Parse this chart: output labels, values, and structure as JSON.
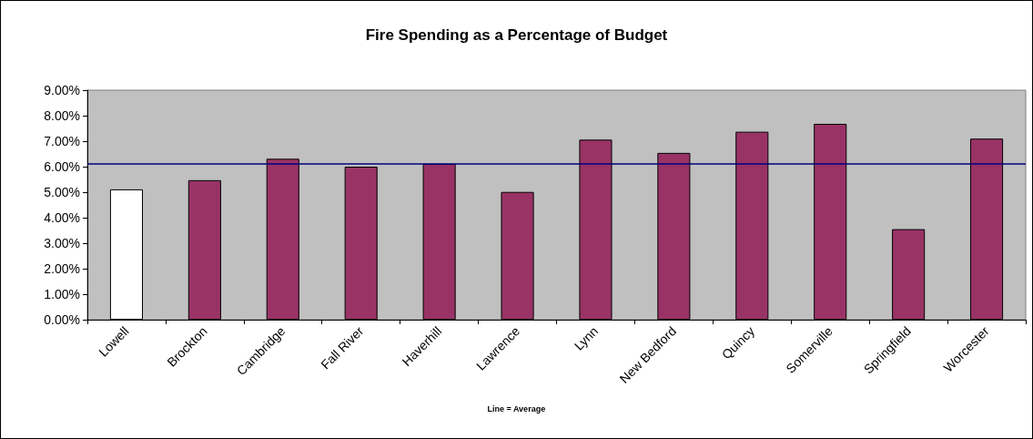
{
  "chart_data": {
    "type": "bar",
    "title": "Fire Spending as a Percentage of Budget",
    "categories": [
      "Lowell",
      "Brockton",
      "Cambridge",
      "Fall River",
      "Haverhill",
      "Lawrence",
      "Lynn",
      "New Bedford",
      "Quincy",
      "Somerville",
      "Springfield",
      "Worcester"
    ],
    "values": [
      5.11,
      5.47,
      6.31,
      6.0,
      6.11,
      5.01,
      7.06,
      6.54,
      7.37,
      7.68,
      3.55,
      7.1
    ],
    "colors": [
      "#ffffff",
      "#993366",
      "#993366",
      "#993366",
      "#993366",
      "#993366",
      "#993366",
      "#993366",
      "#993366",
      "#993366",
      "#993366",
      "#993366"
    ],
    "ylim": [
      0,
      9
    ],
    "yticks": [
      {
        "value": 0,
        "label": "0.00%"
      },
      {
        "value": 1,
        "label": "1.00%"
      },
      {
        "value": 2,
        "label": "2.00%"
      },
      {
        "value": 3,
        "label": "3.00%"
      },
      {
        "value": 4,
        "label": "4.00%"
      },
      {
        "value": 5,
        "label": "5.00%"
      },
      {
        "value": 6,
        "label": "6.00%"
      },
      {
        "value": 7,
        "label": "7.00%"
      },
      {
        "value": 8,
        "label": "8.00%"
      },
      {
        "value": 9,
        "label": "9.00%"
      }
    ],
    "ref_lines": [
      {
        "axis": "y",
        "value": 6.12,
        "color": "#000080"
      }
    ],
    "annotations": [
      "Line = Average"
    ],
    "grid": false
  }
}
